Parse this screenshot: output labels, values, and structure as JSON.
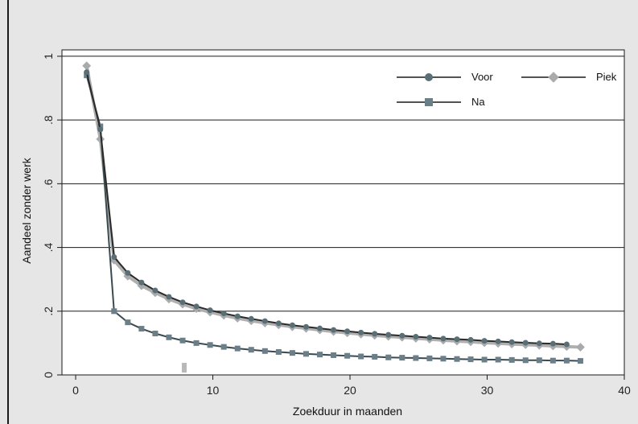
{
  "chart_data": {
    "type": "line",
    "title": "",
    "xlabel": "Zoekduur in maanden",
    "ylabel": "Aandeel zonder werk",
    "xlim": [
      -1,
      40
    ],
    "ylim": [
      0,
      1.02
    ],
    "xticks": [
      0,
      10,
      20,
      30,
      40
    ],
    "xtick_labels": [
      "0",
      "10",
      "20",
      "30",
      "40"
    ],
    "yticks": [
      0,
      0.2,
      0.4,
      0.6,
      0.8,
      1
    ],
    "ytick_labels": [
      "0",
      ".2",
      ".4",
      ".6",
      ".8",
      "1"
    ],
    "grid": true,
    "legend_position": "top-right",
    "x": [
      0.8,
      1.8,
      2.8,
      3.8,
      4.8,
      5.8,
      6.8,
      7.8,
      8.8,
      9.8,
      10.8,
      11.8,
      12.8,
      13.8,
      14.8,
      15.8,
      16.8,
      17.8,
      18.8,
      19.8,
      20.8,
      21.8,
      22.8,
      23.8,
      24.8,
      25.8,
      26.8,
      27.8,
      28.8,
      29.8,
      30.8,
      31.8,
      32.8,
      33.8,
      34.8,
      35.8,
      36.8
    ],
    "series": [
      {
        "name": "Voor",
        "marker": "circle",
        "color": "#5a6e76",
        "values": [
          0.95,
          0.77,
          0.37,
          0.32,
          0.29,
          0.265,
          0.245,
          0.228,
          0.215,
          0.203,
          0.193,
          0.184,
          0.176,
          0.169,
          0.162,
          0.156,
          0.151,
          0.146,
          0.141,
          0.137,
          0.133,
          0.129,
          0.126,
          0.123,
          0.12,
          0.117,
          0.114,
          0.112,
          0.11,
          0.107,
          0.105,
          0.103,
          0.101,
          0.099,
          0.098,
          0.096,
          null
        ]
      },
      {
        "name": "Piek",
        "marker": "diamond",
        "color": "#a8aaac",
        "values": [
          0.97,
          0.74,
          0.36,
          0.31,
          0.28,
          0.258,
          0.238,
          0.222,
          0.208,
          0.197,
          0.187,
          0.178,
          0.17,
          0.163,
          0.157,
          0.151,
          0.146,
          0.141,
          0.136,
          0.132,
          0.128,
          0.124,
          0.121,
          0.118,
          0.115,
          0.112,
          0.109,
          0.106,
          0.104,
          0.101,
          0.099,
          0.097,
          0.095,
          0.093,
          0.091,
          0.089,
          0.087
        ]
      },
      {
        "name": "Na",
        "marker": "square",
        "color": "#6a7f88",
        "values": [
          0.94,
          0.78,
          0.2,
          0.165,
          0.145,
          0.13,
          0.118,
          0.108,
          0.1,
          0.094,
          0.088,
          0.083,
          0.079,
          0.075,
          0.072,
          0.069,
          0.066,
          0.064,
          0.062,
          0.06,
          0.058,
          0.057,
          0.055,
          0.054,
          0.053,
          0.052,
          0.051,
          0.05,
          0.049,
          0.048,
          0.048,
          0.047,
          0.046,
          0.046,
          0.045,
          0.045,
          0.044
        ]
      }
    ]
  }
}
